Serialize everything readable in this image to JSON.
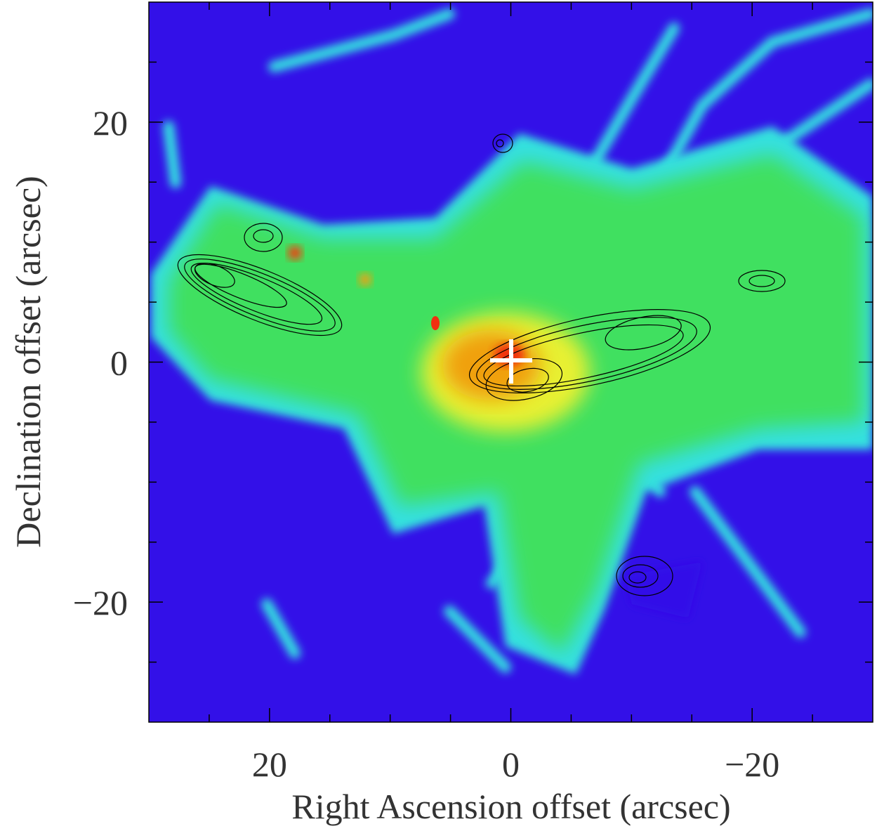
{
  "chart_data": {
    "type": "image",
    "xlabel": "Right Ascension offset (arcsec)",
    "ylabel": "Declination offset (arcsec)",
    "xlim": [
      30,
      -30
    ],
    "ylim": [
      -30,
      30
    ],
    "xticks": [
      20,
      0,
      {
        "value": -20,
        "label": "−20"
      }
    ],
    "yticks": [
      {
        "value": -20,
        "label": "−20"
      },
      0,
      20
    ],
    "minor_xticks": [
      25,
      15,
      10,
      5,
      -5,
      -10,
      -15,
      -25
    ],
    "minor_yticks": [
      -25,
      -15,
      -10,
      -5,
      5,
      10,
      15,
      25
    ]
  }
}
